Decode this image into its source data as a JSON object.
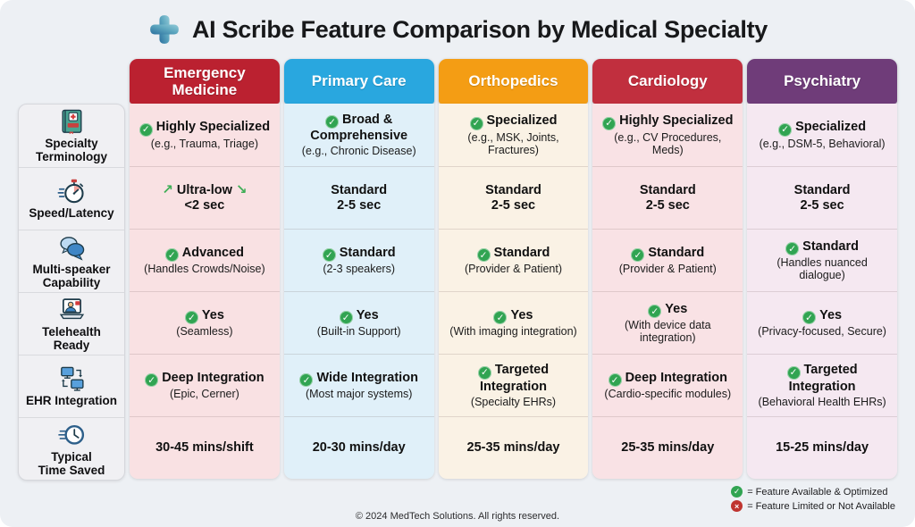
{
  "title": {
    "icon": "medical-cross-icon",
    "text": "AI Scribe Feature Comparison by Medical Specialty"
  },
  "icons": {
    "check_glyph": "✓",
    "cross_glyph": "×",
    "trend_up": "↗",
    "trend_down": "↘"
  },
  "colors": {
    "check_green": "#31a452",
    "cross_red": "#bf3430"
  },
  "features": [
    {
      "icon": "medical-dictionary-icon",
      "label": "Specialty\nTerminology"
    },
    {
      "icon": "stopwatch-icon",
      "label": "Speed/Latency"
    },
    {
      "icon": "speech-bubbles-icon",
      "label": "Multi-speaker\nCapability"
    },
    {
      "icon": "telehealth-icon",
      "label": "Telehealth\nReady"
    },
    {
      "icon": "ehr-sync-icon",
      "label": "EHR Integration"
    },
    {
      "icon": "clock-fast-icon",
      "label": "Typical\nTime Saved"
    }
  ],
  "specialties": [
    {
      "name": "Emergency\nMedicine",
      "colors": {
        "header": "#bb2130",
        "body": "#f9e1e3"
      },
      "cells": [
        {
          "mark": "check",
          "value": "Highly Specialized",
          "note": "(e.g., Trauma, Triage)"
        },
        {
          "mark": "trend",
          "value": "Ultra-low",
          "value2": "<2 sec"
        },
        {
          "mark": "check",
          "value": "Advanced",
          "note": "(Handles Crowds/Noise)"
        },
        {
          "mark": "check",
          "value": "Yes",
          "note": "(Seamless)"
        },
        {
          "mark": "check",
          "value": "Deep Integration",
          "note": "(Epic, Cerner)"
        },
        {
          "value": "30-45 mins/shift"
        }
      ]
    },
    {
      "name": "Primary Care",
      "colors": {
        "header": "#29a7df",
        "body": "#e0f0f9"
      },
      "cells": [
        {
          "mark": "check",
          "value": "Broad & Comprehensive",
          "note": "(e.g., Chronic Disease)"
        },
        {
          "value": "Standard",
          "value2": "2-5 sec"
        },
        {
          "mark": "check",
          "value": "Standard",
          "note": "(2-3 speakers)"
        },
        {
          "mark": "check",
          "value": "Yes",
          "note": "(Built-in Support)"
        },
        {
          "mark": "check",
          "value": "Wide Integration",
          "note": "(Most major systems)"
        },
        {
          "value": "20-30 mins/day"
        }
      ]
    },
    {
      "name": "Orthopedics",
      "colors": {
        "header": "#f49d14",
        "body": "#faf2e5"
      },
      "cells": [
        {
          "mark": "check",
          "value": "Specialized",
          "note": "(e.g., MSK, Joints, Fractures)"
        },
        {
          "value": "Standard",
          "value2": "2-5 sec"
        },
        {
          "mark": "check",
          "value": "Standard",
          "note": "(Provider & Patient)"
        },
        {
          "mark": "check",
          "value": "Yes",
          "note": "(With imaging integration)"
        },
        {
          "mark": "check",
          "value": "Targeted Integration",
          "note": "(Specialty EHRs)"
        },
        {
          "value": "25-35 mins/day"
        }
      ]
    },
    {
      "name": "Cardiology",
      "colors": {
        "header": "#c12f3e",
        "body": "#f9e2e5"
      },
      "cells": [
        {
          "mark": "check",
          "value": "Highly Specialized",
          "note": "(e.g., CV Procedures, Meds)"
        },
        {
          "value": "Standard",
          "value2": "2-5 sec"
        },
        {
          "mark": "check",
          "value": "Standard",
          "note": "(Provider & Patient)"
        },
        {
          "mark": "check",
          "value": "Yes",
          "note": "(With device data integration)"
        },
        {
          "mark": "check",
          "value": "Deep Integration",
          "note": "(Cardio-specific modules)"
        },
        {
          "value": "25-35 mins/day"
        }
      ]
    },
    {
      "name": "Psychiatry",
      "colors": {
        "header": "#6f3c79",
        "body": "#f5e8f1"
      },
      "cells": [
        {
          "mark": "check",
          "value": "Specialized",
          "note": "(e.g., DSM-5, Behavioral)"
        },
        {
          "value": "Standard",
          "value2": "2-5 sec"
        },
        {
          "mark": "check",
          "value": "Standard",
          "note": "(Handles nuanced dialogue)"
        },
        {
          "mark": "check",
          "value": "Yes",
          "note": "(Privacy-focused, Secure)"
        },
        {
          "mark": "check",
          "value": "Targeted Integration",
          "note": "(Behavioral Health EHRs)"
        },
        {
          "value": "15-25 mins/day"
        }
      ]
    }
  ],
  "footer": {
    "copyright": "© 2024 MedTech Solutions. All rights reserved.",
    "legend": [
      {
        "icon": "check-circle-icon",
        "text": "= Feature Available & Optimized"
      },
      {
        "icon": "cross-circle-icon",
        "text": "= Feature Limited or Not Available"
      }
    ]
  },
  "chart_data": {
    "type": "table",
    "title": "AI Scribe Feature Comparison by Medical Specialty",
    "row_headers": [
      "Specialty Terminology",
      "Speed/Latency",
      "Multi-speaker Capability",
      "Telehealth Ready",
      "EHR Integration",
      "Typical Time Saved"
    ],
    "column_headers": [
      "Emergency Medicine",
      "Primary Care",
      "Orthopedics",
      "Cardiology",
      "Psychiatry"
    ],
    "cells": [
      [
        "✓ Highly Specialized (e.g., Trauma, Triage)",
        "✓ Broad & Comprehensive (e.g., Chronic Disease)",
        "✓ Specialized (e.g., MSK, Joints, Fractures)",
        "✓ Highly Specialized (e.g., CV Procedures, Meds)",
        "✓ Specialized (e.g., DSM-5, Behavioral)"
      ],
      [
        "↗ Ultra-low ↘ <2 sec",
        "Standard 2-5 sec",
        "Standard 2-5 sec",
        "Standard 2-5 sec",
        "Standard 2-5 sec"
      ],
      [
        "✓ Advanced (Handles Crowds/Noise)",
        "✓ Standard (2-3 speakers)",
        "✓ Standard (Provider & Patient)",
        "✓ Standard (Provider & Patient)",
        "✓ Standard (Handles nuanced dialogue)"
      ],
      [
        "✓ Yes (Seamless)",
        "✓ Yes (Built-in Support)",
        "✓ Yes (With imaging integration)",
        "✓ Yes (With device data integration)",
        "✓ Yes (Privacy-focused, Secure)"
      ],
      [
        "✓ Deep Integration (Epic, Cerner)",
        "✓ Wide Integration (Most major systems)",
        "✓ Targeted Integration (Specialty EHRs)",
        "✓ Deep Integration (Cardio-specific modules)",
        "✓ Targeted Integration (Behavioral Health EHRs)"
      ],
      [
        "30-45 mins/shift",
        "20-30 mins/day",
        "25-35 mins/day",
        "25-35 mins/day",
        "15-25 mins/day"
      ]
    ]
  }
}
